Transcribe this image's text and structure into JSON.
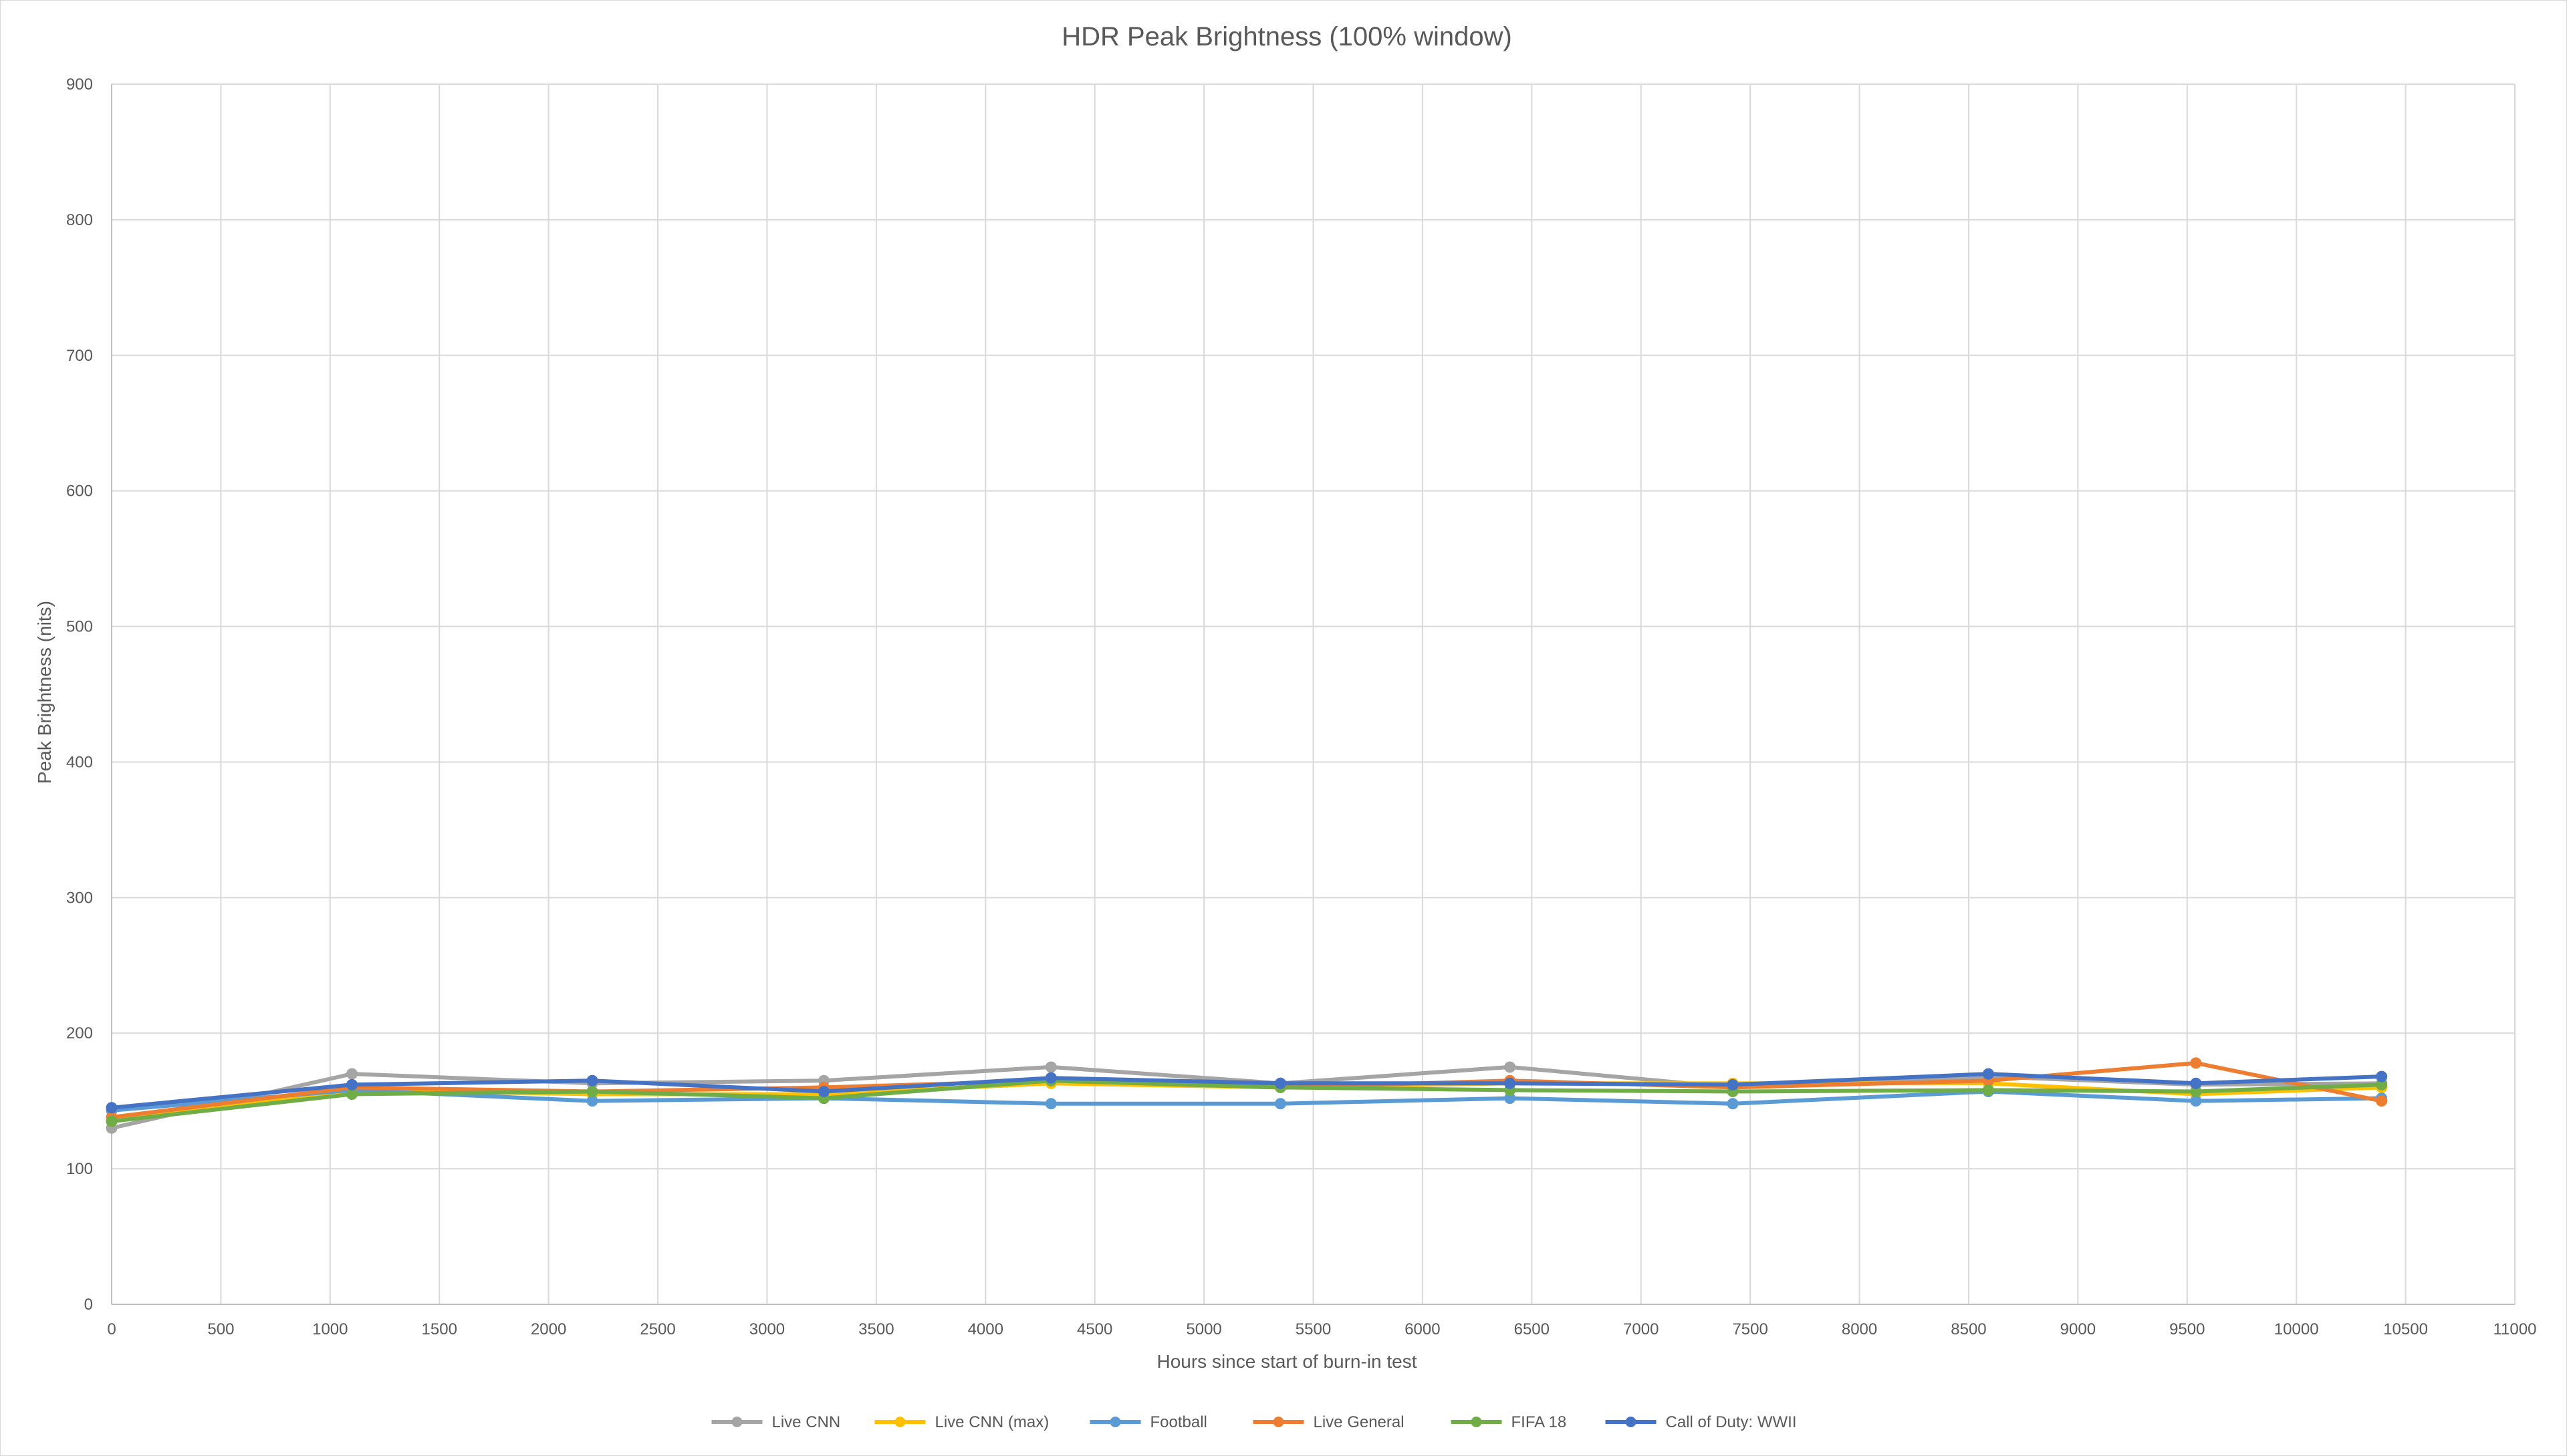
{
  "chart_data": {
    "type": "line",
    "title": "HDR Peak Brightness (100% window)",
    "xlabel": "Hours since start of burn-in test",
    "ylabel": "Peak Brightness (nits)",
    "xlim": [
      0,
      11000
    ],
    "ylim": [
      0,
      900
    ],
    "x_ticks": [
      0,
      500,
      1000,
      1500,
      2000,
      2500,
      3000,
      3500,
      4000,
      4500,
      5000,
      5500,
      6000,
      6500,
      7000,
      7500,
      8000,
      8500,
      9000,
      9500,
      10000,
      10500,
      11000
    ],
    "y_ticks": [
      0,
      100,
      200,
      300,
      400,
      500,
      600,
      700,
      800,
      900
    ],
    "grid": true,
    "legend_position": "bottom",
    "x": [
      0,
      1100,
      2200,
      3260,
      4300,
      5350,
      6400,
      7420,
      8590,
      9540,
      10390
    ],
    "series": [
      {
        "name": "Live CNN",
        "color": "#a5a5a5",
        "values": [
          130,
          170,
          163,
          165,
          175,
          163,
          175,
          160,
          168,
          162,
          163
        ]
      },
      {
        "name": "Live CNN (max)",
        "color": "#ffc000",
        "values": [
          135,
          158,
          155,
          155,
          163,
          160,
          163,
          163,
          163,
          155,
          160
        ]
      },
      {
        "name": "Football",
        "color": "#5b9bd5",
        "values": [
          143,
          158,
          150,
          152,
          148,
          148,
          152,
          148,
          157,
          150,
          152
        ]
      },
      {
        "name": "Live General",
        "color": "#ed7d31",
        "values": [
          138,
          160,
          157,
          160,
          165,
          160,
          165,
          160,
          165,
          178,
          150
        ]
      },
      {
        "name": "FIFA 18",
        "color": "#70ad47",
        "values": [
          135,
          155,
          157,
          152,
          165,
          160,
          158,
          157,
          158,
          157,
          162
        ]
      },
      {
        "name": "Call of Duty: WWII",
        "color": "#4472c4",
        "values": [
          145,
          162,
          165,
          157,
          167,
          163,
          163,
          162,
          170,
          163,
          168
        ]
      }
    ]
  }
}
